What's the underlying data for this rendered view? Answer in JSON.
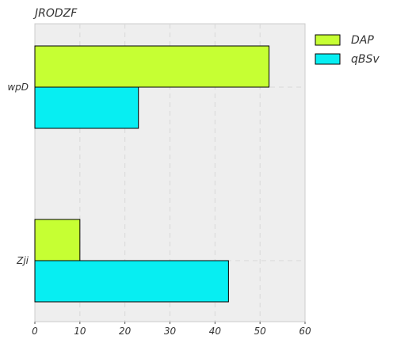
{
  "chart_data": {
    "type": "bar",
    "orientation": "horizontal",
    "title": "JRODZF",
    "xlabel": "",
    "ylabel": "",
    "categories": [
      "wpD",
      "Zji"
    ],
    "series": [
      {
        "name": "DAP",
        "values": [
          52,
          10
        ],
        "color": "#c6ff33"
      },
      {
        "name": "qBSv",
        "values": [
          23,
          43
        ],
        "color": "#07eef2"
      }
    ],
    "xlim": [
      0,
      60
    ],
    "xticks": [
      0,
      10,
      20,
      30,
      40,
      50,
      60
    ],
    "grid": true,
    "legend_position": "outside-top-right",
    "background": "#eeeeee"
  }
}
